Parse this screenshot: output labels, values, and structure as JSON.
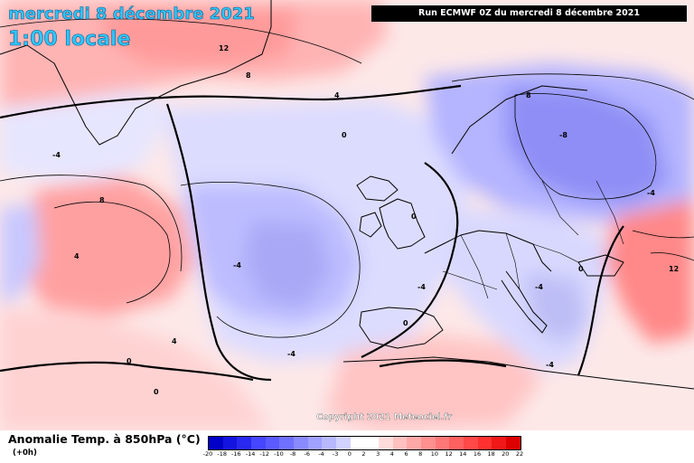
{
  "header": {
    "date": "mercredi 8 décembre 2021",
    "time": "1:00 locale",
    "run": "Run ECMWF 0Z du mercredi 8 décembre 2021"
  },
  "copyright": "Copyright 2021 Meteociel.fr",
  "legend": {
    "title": "Anomalie Temp. à 850hPa (°C)",
    "subtitle": "(+0h)",
    "ticks": [
      "-20",
      "-18",
      "-16",
      "-14",
      "-12",
      "-10",
      "-8",
      "-6",
      "-4",
      "-3",
      "0",
      "2",
      "3",
      "4",
      "6",
      "8",
      "10",
      "12",
      "14",
      "16",
      "18",
      "20",
      "22"
    ],
    "colors": [
      "#0000c8",
      "#1414e0",
      "#2828f0",
      "#4646ff",
      "#5a5aff",
      "#7070ff",
      "#8a8aff",
      "#a0a0ff",
      "#b8b8ff",
      "#d2d2ff",
      "#ffffff",
      "#ffffff",
      "#ffdcdc",
      "#ffc0c0",
      "#ffa8a8",
      "#ff9090",
      "#ff7878",
      "#ff6060",
      "#ff4848",
      "#ff3030",
      "#f01818",
      "#dc0000"
    ]
  },
  "map": {
    "contour_labels": [
      {
        "text": "12",
        "name": "label-12-greenland-north"
      },
      {
        "text": "8",
        "name": "label-8-greenland"
      },
      {
        "text": "4",
        "name": "label-4-greenland"
      },
      {
        "text": "-4",
        "name": "label-minus4-labrador"
      },
      {
        "text": "8",
        "name": "label-8-newfoundland"
      },
      {
        "text": "4",
        "name": "label-4-west-atlantic"
      },
      {
        "text": "0",
        "name": "label-0-atlantic"
      },
      {
        "text": "-4",
        "name": "label-minus4-central-atlantic"
      },
      {
        "text": "-4",
        "name": "label-minus4-south-atlantic"
      },
      {
        "text": "0",
        "name": "label-0-iceland"
      },
      {
        "text": "0",
        "name": "label-0-uk"
      },
      {
        "text": "-4",
        "name": "label-minus4-biscay"
      },
      {
        "text": "0",
        "name": "label-0-iberia"
      },
      {
        "text": "8",
        "name": "label-8-scandinavia"
      },
      {
        "text": "-8",
        "name": "label-minus8-sweden"
      },
      {
        "text": "-4",
        "name": "label-minus4-russia"
      },
      {
        "text": "0",
        "name": "label-0-balkans"
      },
      {
        "text": "12",
        "name": "label-12-east"
      },
      {
        "text": "-4",
        "name": "label-minus4-italy"
      },
      {
        "text": "-4",
        "name": "label-minus4-greece"
      },
      {
        "text": "0",
        "name": "label-0-africa"
      },
      {
        "text": "4",
        "name": "label-4-sw"
      }
    ]
  }
}
